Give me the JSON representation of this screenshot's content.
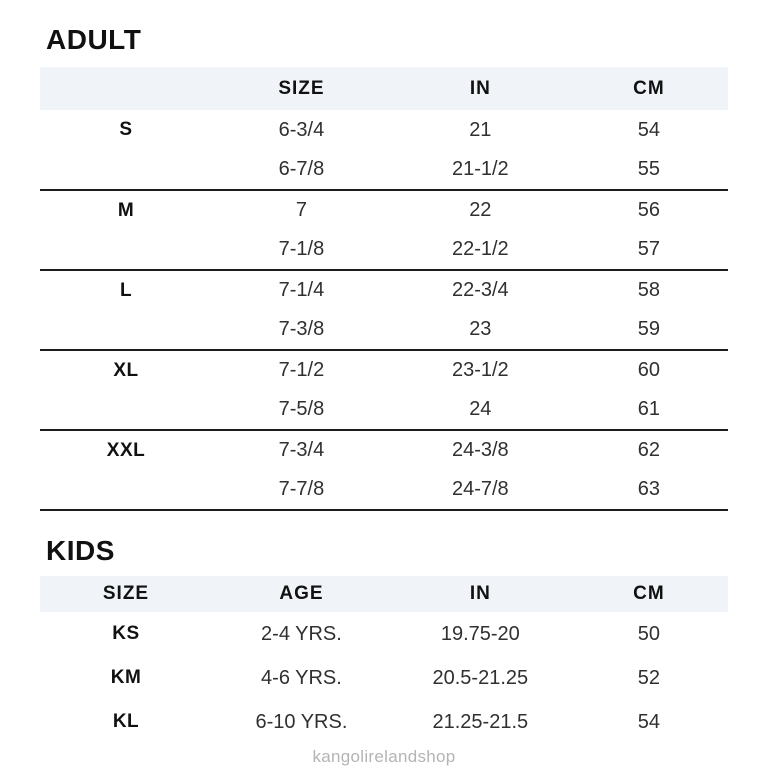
{
  "page": {
    "watermark": "kangolirelandshop"
  },
  "colors": {
    "header_band": "#f0f4f9",
    "divider": "#1c1c1c",
    "heading_text": "#111111",
    "cell_text": "#303030",
    "watermark_text": "#b4b4b4"
  },
  "adult": {
    "title": "ADULT",
    "headers": {
      "blank": "",
      "size": "SIZE",
      "in": "IN",
      "cm": "CM"
    },
    "groups": [
      {
        "label": "S",
        "rows": [
          [
            "6-3/4",
            "21",
            "54"
          ],
          [
            "6-7/8",
            "21-1/2",
            "55"
          ]
        ]
      },
      {
        "label": "M",
        "rows": [
          [
            "7",
            "22",
            "56"
          ],
          [
            "7-1/8",
            "22-1/2",
            "57"
          ]
        ]
      },
      {
        "label": "L",
        "rows": [
          [
            "7-1/4",
            "22-3/4",
            "58"
          ],
          [
            "7-3/8",
            "23",
            "59"
          ]
        ]
      },
      {
        "label": "XL",
        "rows": [
          [
            "7-1/2",
            "23-1/2",
            "60"
          ],
          [
            "7-5/8",
            "24",
            "61"
          ]
        ]
      },
      {
        "label": "XXL",
        "rows": [
          [
            "7-3/4",
            "24-3/8",
            "62"
          ],
          [
            "7-7/8",
            "24-7/8",
            "63"
          ]
        ]
      }
    ]
  },
  "kids": {
    "title": "KIDS",
    "headers": {
      "size": "SIZE",
      "age": "AGE",
      "in": "IN",
      "cm": "CM"
    },
    "rows": [
      {
        "size": "KS",
        "age": "2-4 YRS.",
        "in": "19.75-20",
        "cm": "50"
      },
      {
        "size": "KM",
        "age": "4-6 YRS.",
        "in": "20.5-21.25",
        "cm": "52"
      },
      {
        "size": "KL",
        "age": "6-10 YRS.",
        "in": "21.25-21.5",
        "cm": "54"
      }
    ]
  }
}
